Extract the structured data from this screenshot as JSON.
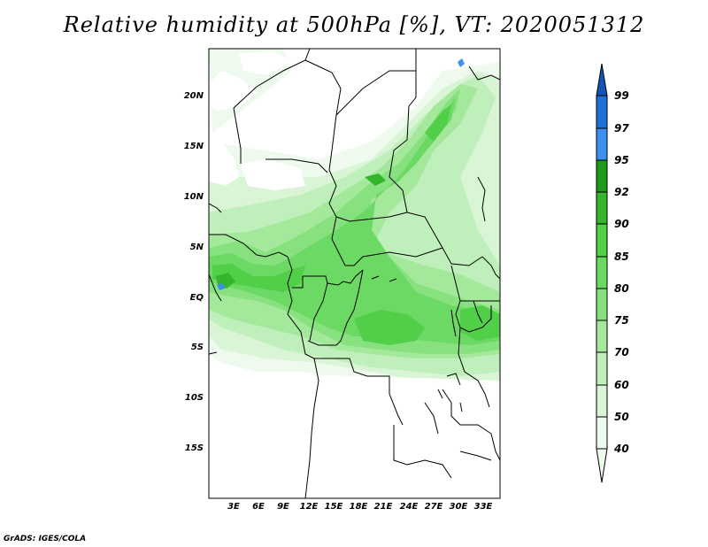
{
  "title": "Relative humidity at 500hPa [%], VT: 2020051312",
  "map": {
    "lat_labels": [
      "20N",
      "15N",
      "10N",
      "5N",
      "EQ",
      "5S",
      "10S",
      "15S"
    ],
    "lon_labels": [
      "3E",
      "6E",
      "9E",
      "12E",
      "15E",
      "18E",
      "21E",
      "24E",
      "27E",
      "30E",
      "33E"
    ]
  },
  "colorbar": {
    "levels": [
      "99",
      "97",
      "95",
      "92",
      "90",
      "85",
      "80",
      "75",
      "70",
      "60",
      "50",
      "40"
    ],
    "colors": {
      "40-50": "#eefaee",
      "50-60": "#d9f5d6",
      "60-70": "#bfefba",
      "70-75": "#a4e89c",
      "75-80": "#88e17f",
      "80-85": "#6bd963",
      "85-90": "#51cf48",
      "90-92": "#34b52b",
      "92-95": "#1e9a1a",
      "95-97": "#3d8ff0",
      "97-99": "#1f70d8",
      "99+": "#1454b4"
    }
  },
  "credit": "GrADS: IGES/COLA"
}
